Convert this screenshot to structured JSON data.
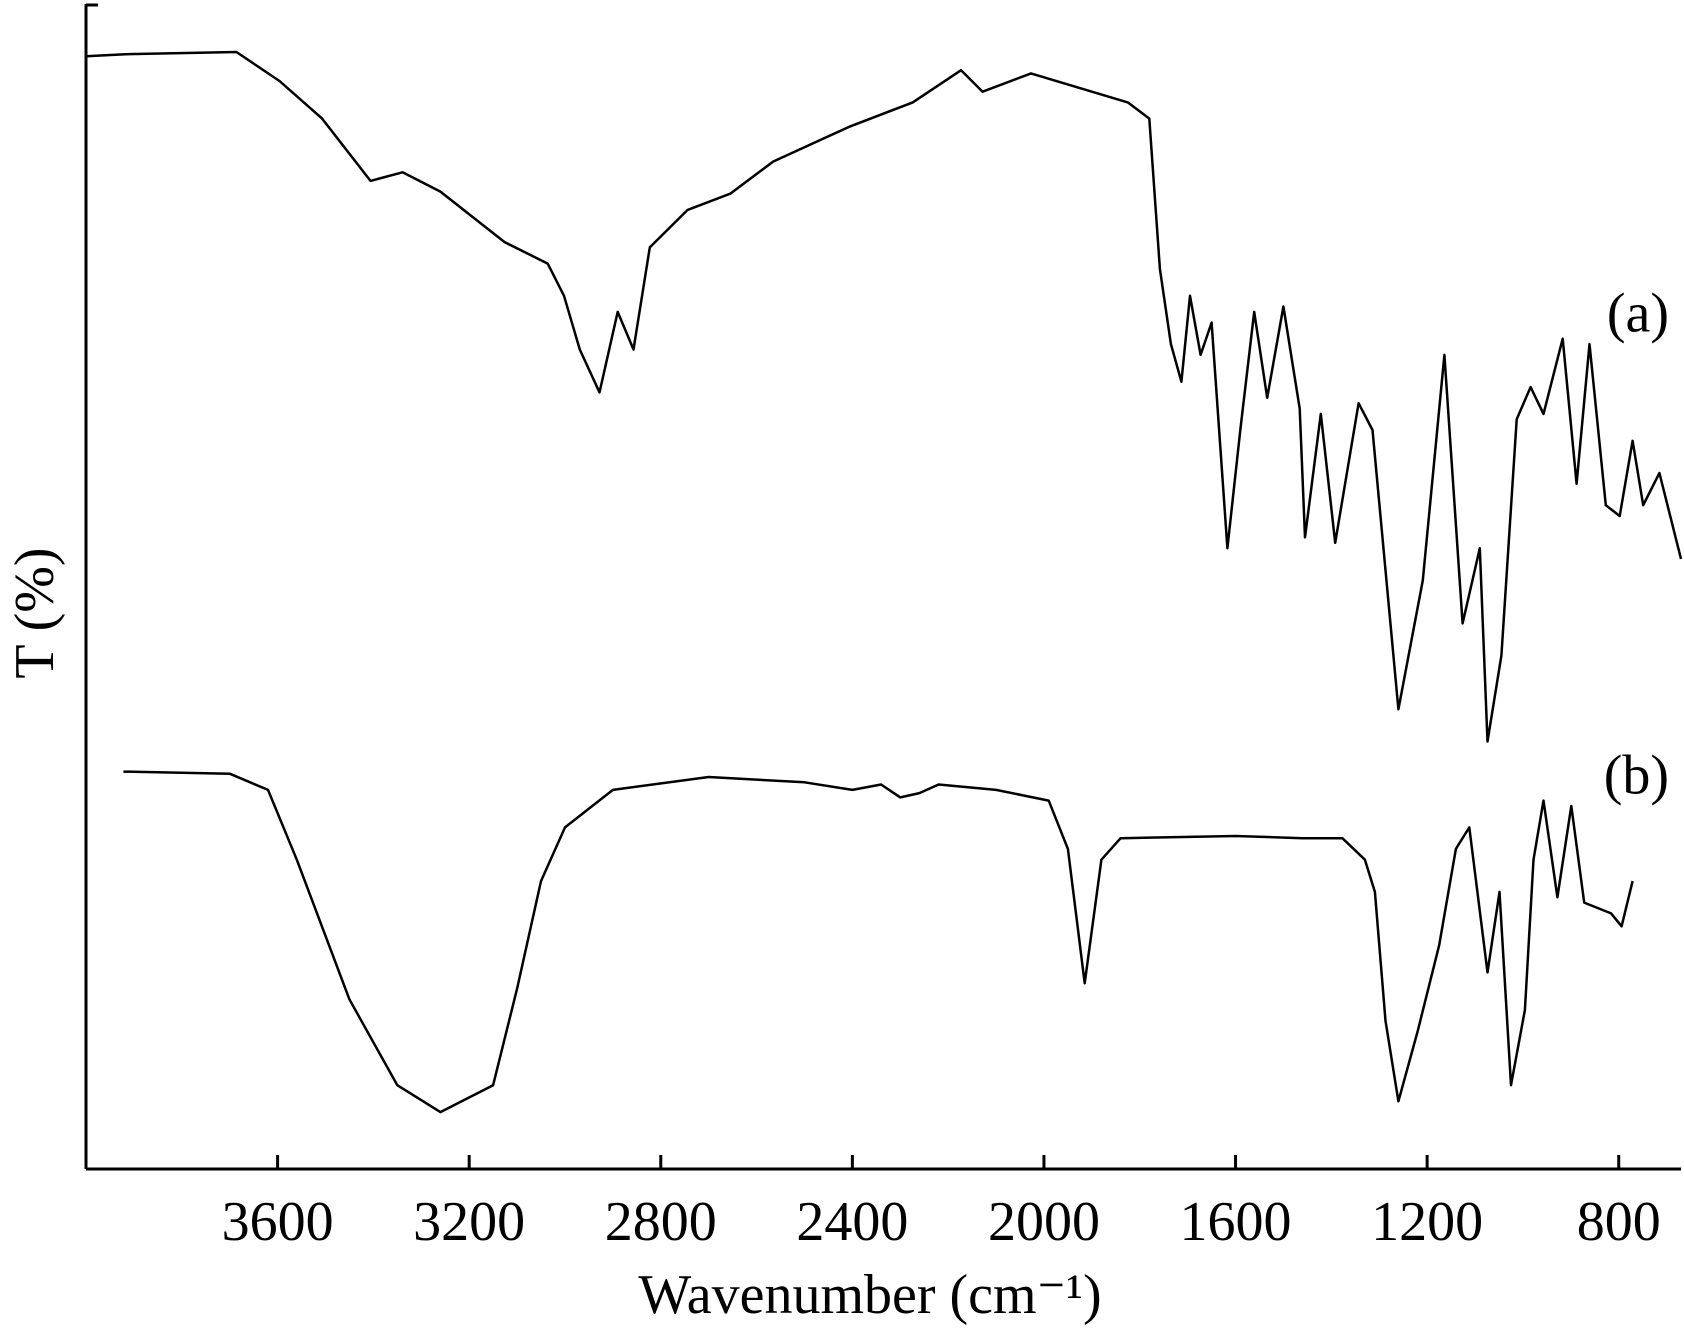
{
  "chart_data": {
    "type": "line",
    "xlabel": "Wavenumber (cm⁻¹)",
    "ylabel": "T (%)",
    "xlim": [
      4000,
      670
    ],
    "xticks": [
      3600,
      3200,
      2800,
      2400,
      2000,
      1600,
      1200,
      800
    ],
    "ylim": [
      0,
      1080
    ],
    "color": "#000000",
    "series": [
      {
        "name": "(a)",
        "color": "#000000",
        "x": [
          4000,
          3910,
          3686,
          3596,
          3507,
          3406,
          3339,
          3260,
          3126,
          3036,
          3002,
          2969,
          2928,
          2890,
          2857,
          2823,
          2744,
          2655,
          2565,
          2408,
          2274,
          2173,
          2128,
          2027,
          1825,
          1780,
          1758,
          1735,
          1713,
          1695,
          1673,
          1650,
          1617,
          1590,
          1561,
          1534,
          1500,
          1466,
          1455,
          1422,
          1392,
          1343,
          1314,
          1260,
          1209,
          1164,
          1126,
          1090,
          1074,
          1045,
          1013,
          984,
          957,
          917,
          888,
          861,
          827,
          798,
          771,
          749,
          715,
          670
        ],
        "values": [
          1036,
          1038,
          1040,
          1013,
          978,
          920,
          928,
          910,
          863,
          843,
          813,
          763,
          723,
          798,
          763,
          858,
          893,
          908,
          938,
          970,
          993,
          1023,
          1003,
          1020,
          993,
          978,
          838,
          768,
          733,
          813,
          758,
          788,
          578,
          688,
          798,
          718,
          803,
          708,
          588,
          703,
          583,
          713,
          688,
          428,
          548,
          758,
          508,
          578,
          398,
          478,
          698,
          728,
          703,
          773,
          638,
          768,
          618,
          608,
          678,
          618,
          648,
          568
        ]
      },
      {
        "name": "(b)",
        "color": "#000000",
        "x": [
          3922,
          3700,
          3620,
          3560,
          3450,
          3350,
          3260,
          3150,
          3100,
          3050,
          3000,
          2900,
          2700,
          2500,
          2400,
          2340,
          2300,
          2260,
          2220,
          2100,
          1990,
          1950,
          1915,
          1880,
          1840,
          1600,
          1460,
          1377,
          1330,
          1309,
          1287,
          1260,
          1220,
          1175,
          1140,
          1112,
          1074,
          1049,
          1025,
          996,
          978,
          957,
          928,
          899,
          872,
          816,
          794,
          771
        ],
        "values": [
          370,
          368,
          353,
          288,
          158,
          78,
          53,
          78,
          168,
          268,
          318,
          353,
          365,
          360,
          353,
          358,
          346,
          350,
          358,
          353,
          343,
          298,
          173,
          288,
          308,
          310,
          308,
          308,
          288,
          258,
          138,
          63,
          128,
          208,
          298,
          318,
          183,
          258,
          78,
          148,
          288,
          343,
          253,
          338,
          248,
          238,
          226,
          268
        ]
      }
    ]
  }
}
